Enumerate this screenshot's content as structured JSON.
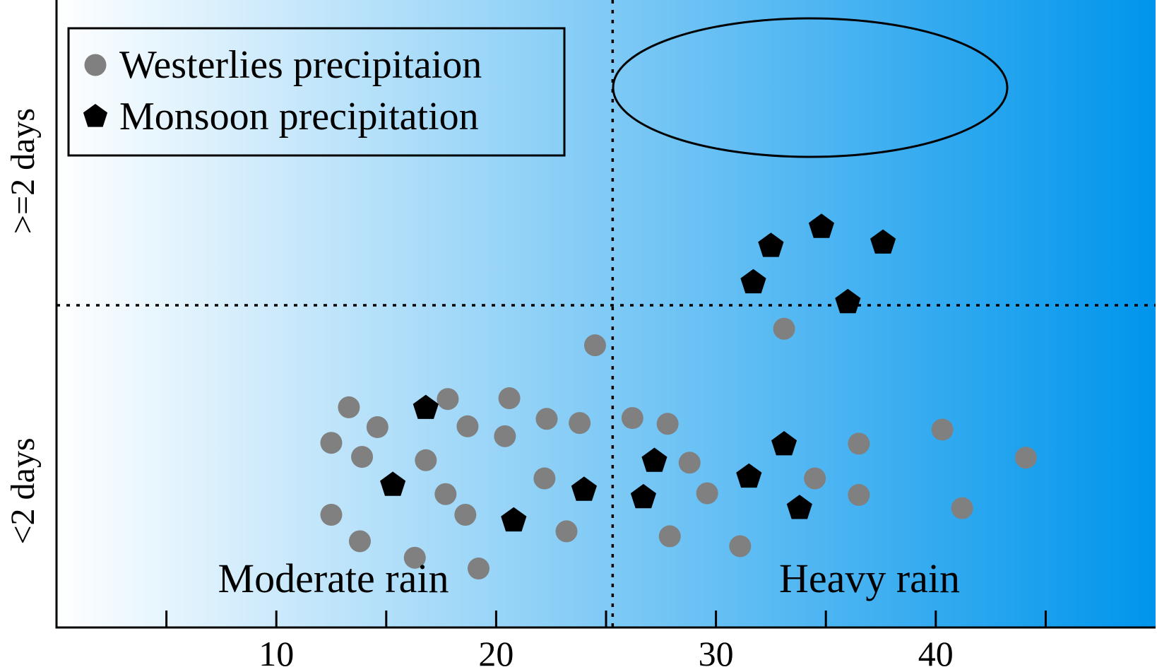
{
  "chart_data": {
    "type": "scatter",
    "title": "",
    "xlabel": "",
    "ylabel": "",
    "xlim": [
      0,
      50
    ],
    "xticks": [
      5,
      10,
      15,
      20,
      25,
      30,
      35,
      40,
      45
    ],
    "xtick_labels": [
      {
        "x": 10,
        "label": "10"
      },
      {
        "x": 20,
        "label": "20"
      },
      {
        "x": 30,
        "label": "30"
      },
      {
        "x": 40,
        "label": "40"
      }
    ],
    "y_categories": [
      ">=2 days",
      "<2  days"
    ],
    "x_threshold": 25.3,
    "background_gradient": {
      "from": "#ffffff",
      "to": "#0095ec"
    },
    "legend": {
      "position": "top-left",
      "entries": [
        {
          "series": "westerlies",
          "label": "Westerlies precipitaion",
          "marker": "circle"
        },
        {
          "series": "monsoon",
          "label": "Monsoon precipitation",
          "marker": "pentagon"
        }
      ]
    },
    "annotations": [
      {
        "text": "Moderate rain",
        "region": "x<25"
      },
      {
        "text": "Heavy rain",
        "region": "x>25"
      }
    ],
    "highlight_ellipse": {
      "encloses": "monsoon points in >=2 days group",
      "x_range": [
        26,
        44
      ]
    },
    "series": [
      {
        "key": "westerlies",
        "name": "Westerlies precipitaion",
        "color": "#808080",
        "marker": "circle",
        "points": [
          {
            "x": 24.5,
            "y": 1.55
          },
          {
            "x": 33.1,
            "y": 1.75
          },
          {
            "x": 13.3,
            "y": 0.8
          },
          {
            "x": 17.8,
            "y": 0.9
          },
          {
            "x": 20.6,
            "y": 0.91
          },
          {
            "x": 14.6,
            "y": 0.56
          },
          {
            "x": 18.7,
            "y": 0.57
          },
          {
            "x": 22.3,
            "y": 0.66
          },
          {
            "x": 23.8,
            "y": 0.61
          },
          {
            "x": 26.2,
            "y": 0.67
          },
          {
            "x": 27.8,
            "y": 0.6
          },
          {
            "x": 12.5,
            "y": 0.37
          },
          {
            "x": 20.4,
            "y": 0.45
          },
          {
            "x": 36.5,
            "y": 0.36
          },
          {
            "x": 40.3,
            "y": 0.53
          },
          {
            "x": 13.9,
            "y": 0.2
          },
          {
            "x": 16.8,
            "y": 0.16
          },
          {
            "x": 28.8,
            "y": 0.13
          },
          {
            "x": 44.1,
            "y": 0.19
          },
          {
            "x": 22.2,
            "y": -0.06
          },
          {
            "x": 34.5,
            "y": -0.06
          },
          {
            "x": 17.7,
            "y": -0.25
          },
          {
            "x": 29.6,
            "y": -0.24
          },
          {
            "x": 36.5,
            "y": -0.26
          },
          {
            "x": 12.5,
            "y": -0.5
          },
          {
            "x": 18.6,
            "y": -0.5
          },
          {
            "x": 41.2,
            "y": -0.42
          },
          {
            "x": 13.8,
            "y": -0.82
          },
          {
            "x": 23.2,
            "y": -0.7
          },
          {
            "x": 27.9,
            "y": -0.76
          },
          {
            "x": 31.1,
            "y": -0.88
          },
          {
            "x": 16.3,
            "y": -1.02
          },
          {
            "x": 19.2,
            "y": -1.15
          }
        ]
      },
      {
        "key": "monsoon",
        "name": "Monsoon precipitation",
        "color": "#000000",
        "marker": "pentagon",
        "points": [
          {
            "x": 34.8,
            "y": 2.98
          },
          {
            "x": 32.5,
            "y": 2.75
          },
          {
            "x": 37.6,
            "y": 2.79
          },
          {
            "x": 31.7,
            "y": 2.31
          },
          {
            "x": 36.0,
            "y": 2.07
          },
          {
            "x": 16.8,
            "y": 0.79
          },
          {
            "x": 27.2,
            "y": 0.15
          },
          {
            "x": 33.1,
            "y": 0.35
          },
          {
            "x": 15.3,
            "y": -0.14
          },
          {
            "x": 31.5,
            "y": -0.04
          },
          {
            "x": 24.0,
            "y": -0.2
          },
          {
            "x": 26.7,
            "y": -0.29
          },
          {
            "x": 33.8,
            "y": -0.42
          },
          {
            "x": 20.8,
            "y": -0.57
          }
        ]
      }
    ]
  }
}
